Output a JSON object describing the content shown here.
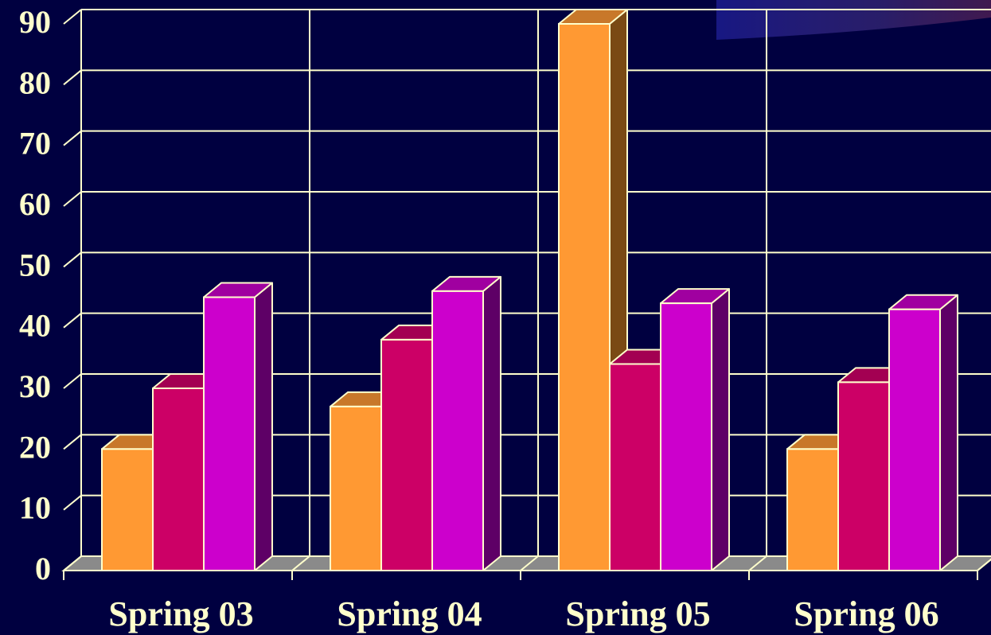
{
  "chart_data": {
    "type": "bar",
    "categories": [
      "Spring 03",
      "Spring 04",
      "Spring 05",
      "Spring 06"
    ],
    "series": [
      {
        "values": [
          20,
          27,
          90,
          20
        ]
      },
      {
        "values": [
          30,
          38,
          34,
          31
        ]
      },
      {
        "values": [
          45,
          46,
          44,
          43
        ]
      }
    ],
    "ylim": [
      0,
      90
    ],
    "yticks": [
      0,
      10,
      20,
      30,
      40,
      50,
      60,
      70,
      80,
      90
    ],
    "grid": true,
    "colors": {
      "background": "#000040",
      "grid": "#ffffcc",
      "labels": "#ffffcc",
      "floor": "#8a8a8a",
      "series": [
        {
          "front": "#ff9933",
          "top": "#c8782a",
          "side": "#7a4a14"
        },
        {
          "front": "#cc0066",
          "top": "#a30052",
          "side": "#66003a"
        },
        {
          "front": "#cc00cc",
          "top": "#a000a0",
          "side": "#5e0066"
        }
      ]
    }
  }
}
